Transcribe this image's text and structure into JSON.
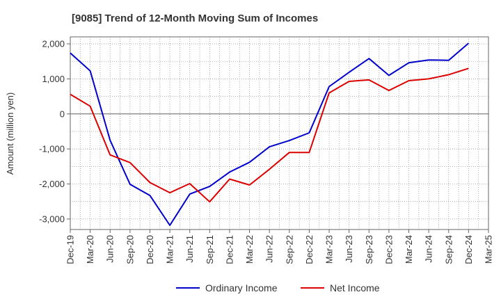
{
  "chart_data": {
    "type": "line",
    "title": "[9085]  Trend of 12-Month Moving Sum of Incomes",
    "xlabel": "",
    "ylabel": "Amount (million yen)",
    "ylim": [
      -3300,
      2200
    ],
    "yticks": [
      2000,
      1000,
      0,
      -1000,
      -2000,
      -3000
    ],
    "ytick_labels": [
      "2,000",
      "1,000",
      "0",
      "-1,000",
      "-2,000",
      "-3,000"
    ],
    "categories": [
      "Dec-19",
      "Mar-20",
      "Jun-20",
      "Sep-20",
      "Dec-20",
      "Mar-21",
      "Jun-21",
      "Sep-21",
      "Dec-21",
      "Mar-22",
      "Jun-22",
      "Sep-22",
      "Dec-22",
      "Mar-23",
      "Jun-23",
      "Sep-23",
      "Dec-23",
      "Mar-24",
      "Jun-24",
      "Sep-24",
      "Dec-24",
      "Mar-25"
    ],
    "series": [
      {
        "name": "Ordinary Income",
        "color": "#0000cc",
        "values": [
          1740,
          1230,
          -750,
          -2010,
          -2330,
          -3180,
          -2290,
          -2070,
          -1660,
          -1380,
          -940,
          -760,
          -540,
          780,
          1190,
          1580,
          1100,
          1460,
          1540,
          1530,
          2020,
          null
        ]
      },
      {
        "name": "Net Income",
        "color": "#dd0000",
        "values": [
          560,
          220,
          -1170,
          -1390,
          -1960,
          -2250,
          -1990,
          -2510,
          -1860,
          -2030,
          -1580,
          -1100,
          -1100,
          600,
          930,
          970,
          670,
          950,
          1000,
          1120,
          1300,
          null
        ]
      }
    ],
    "legend": "bottom-center",
    "grid": true
  }
}
